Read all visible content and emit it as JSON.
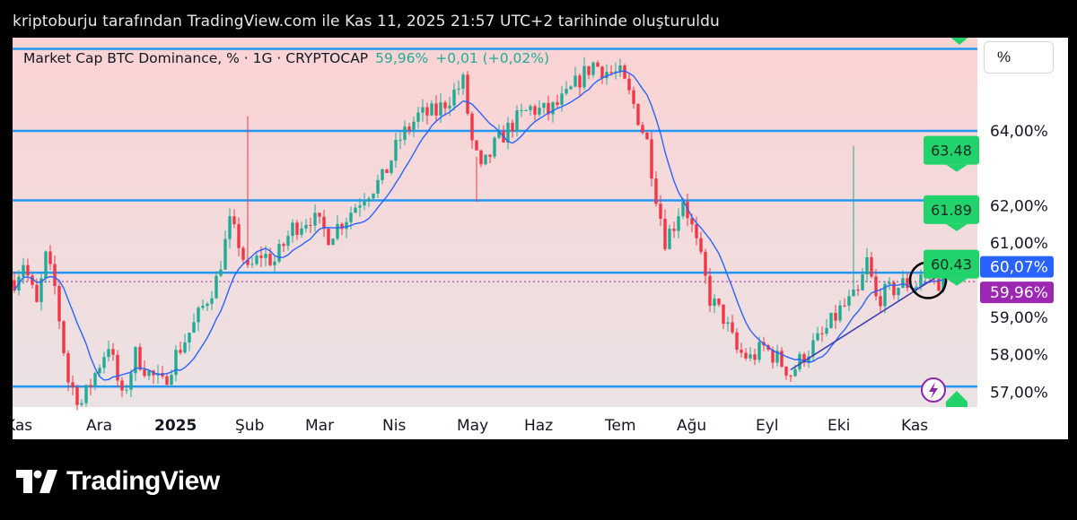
{
  "caption": "kriptoburju tarafından TradingView.com ile Kas 11, 2025 21:57 UTC+2 tarihinde oluşturuldu",
  "legend": {
    "title": "Market Cap BTC Dominance, % · 1G · CRYPTOCAP",
    "price": "59,96%",
    "change": "+0,01 (+0,02%)"
  },
  "scale_button": "%",
  "brand": "TradingView",
  "icons": {
    "alert": "lightning-icon",
    "logo": "tradingview-logo-icon"
  },
  "colors": {
    "bullish": "#22ab94",
    "bearish": "#f23645",
    "level_line": "#2196f3",
    "ma_line": "#2962ff",
    "trendline": "#3f3fb5",
    "price_tag": "#9c27b0",
    "ma_tag": "#2962ff",
    "target_tag": "#22d36b"
  },
  "chart_data": {
    "type": "candlestick",
    "symbol": "CRYPTOCAP:BTC.D",
    "interval": "1G",
    "ylim": [
      56.6,
      66.5
    ],
    "y_ticks": [
      {
        "value": 64.0,
        "label": "64,00%"
      },
      {
        "value": 62.0,
        "label": "62,00%"
      },
      {
        "value": 61.0,
        "label": "61,00%"
      },
      {
        "value": 59.0,
        "label": "59,00%"
      },
      {
        "value": 58.0,
        "label": "58,00%"
      },
      {
        "value": 57.0,
        "label": "57,00%"
      }
    ],
    "x_labels": [
      {
        "label": "Kas",
        "bold": false
      },
      {
        "label": "Ara",
        "bold": false
      },
      {
        "label": "2025",
        "bold": true
      },
      {
        "label": "Şub",
        "bold": false
      },
      {
        "label": "Mar",
        "bold": false
      },
      {
        "label": "Nis",
        "bold": false
      },
      {
        "label": "May",
        "bold": false
      },
      {
        "label": "Haz",
        "bold": false
      },
      {
        "label": "Tem",
        "bold": false
      },
      {
        "label": "Ağu",
        "bold": false
      },
      {
        "label": "Eyl",
        "bold": false
      },
      {
        "label": "Eki",
        "bold": false
      },
      {
        "label": "Kas",
        "bold": false
      }
    ],
    "horizontal_levels": [
      66.2,
      64.0,
      62.14,
      60.2,
      57.15
    ],
    "target_labels": [
      {
        "label": "63.48",
        "value": 63.48
      },
      {
        "label": "61.89",
        "value": 61.89
      },
      {
        "label": "60.43",
        "value": 60.43
      }
    ],
    "current_price": {
      "value": 59.96,
      "label": "59,96%"
    },
    "ma_value": {
      "value": 60.07,
      "label": "60,07%"
    },
    "series": [
      {
        "name": "BTC.D close",
        "points": [
          [
            0,
            60.0
          ],
          [
            2,
            60.5
          ],
          [
            5,
            59.3
          ],
          [
            7,
            60.6
          ],
          [
            9,
            59.8
          ],
          [
            12,
            57.3
          ],
          [
            15,
            56.7
          ],
          [
            18,
            57.5
          ],
          [
            21,
            58.3
          ],
          [
            24,
            56.8
          ],
          [
            27,
            58.0
          ],
          [
            30,
            57.5
          ],
          [
            33,
            57.2
          ],
          [
            36,
            58.0
          ],
          [
            40,
            58.8
          ],
          [
            45,
            60.0
          ],
          [
            48,
            61.5
          ],
          [
            50,
            61.0
          ],
          [
            52,
            60.2
          ],
          [
            55,
            60.7
          ],
          [
            58,
            60.5
          ],
          [
            62,
            61.4
          ],
          [
            66,
            61.7
          ],
          [
            70,
            61.2
          ],
          [
            74,
            61.7
          ],
          [
            78,
            62.3
          ],
          [
            82,
            62.7
          ],
          [
            86,
            63.8
          ],
          [
            90,
            64.4
          ],
          [
            94,
            64.5
          ],
          [
            97,
            64.9
          ],
          [
            100,
            65.3
          ],
          [
            102,
            63.7
          ],
          [
            104,
            62.9
          ],
          [
            107,
            63.6
          ],
          [
            111,
            64.2
          ],
          [
            115,
            64.6
          ],
          [
            119,
            64.5
          ],
          [
            123,
            64.9
          ],
          [
            126,
            65.4
          ],
          [
            129,
            65.8
          ],
          [
            132,
            65.6
          ],
          [
            135,
            65.5
          ],
          [
            138,
            64.7
          ],
          [
            141,
            63.7
          ],
          [
            143,
            62.3
          ],
          [
            145,
            61.1
          ],
          [
            147,
            61.5
          ],
          [
            149,
            62.2
          ],
          [
            151,
            61.4
          ],
          [
            153,
            60.5
          ],
          [
            155,
            59.5
          ],
          [
            158,
            59.0
          ],
          [
            161,
            58.1
          ],
          [
            164,
            57.9
          ],
          [
            167,
            58.2
          ],
          [
            170,
            57.9
          ],
          [
            173,
            57.5
          ],
          [
            176,
            58.0
          ],
          [
            180,
            58.5
          ],
          [
            184,
            59.2
          ],
          [
            188,
            59.6
          ],
          [
            190,
            60.5
          ],
          [
            192,
            59.5
          ],
          [
            195,
            59.7
          ],
          [
            198,
            59.9
          ],
          [
            201,
            59.9
          ],
          [
            203,
            60.4
          ],
          [
            205,
            59.96
          ]
        ]
      }
    ],
    "trendline": [
      [
        173,
        57.6
      ],
      [
        207,
        60.2
      ]
    ]
  }
}
